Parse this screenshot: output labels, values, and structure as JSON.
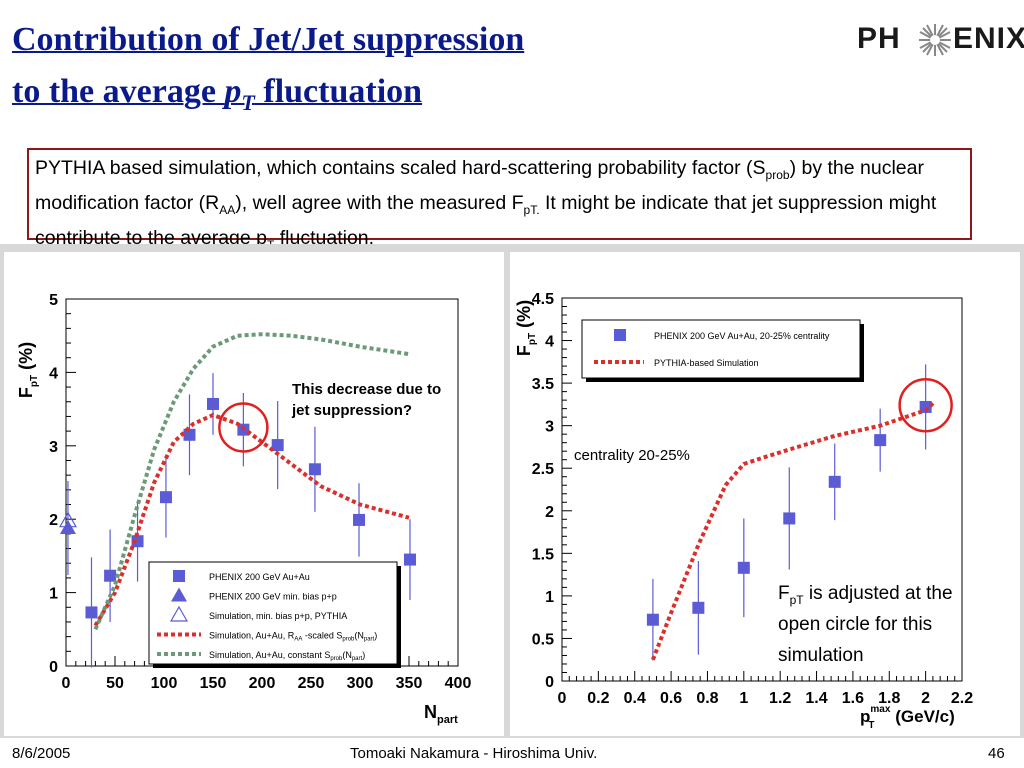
{
  "title": {
    "line1": "Contribution of Jet/Jet suppression",
    "line2_prefix": "to the average ",
    "line2_var": "p",
    "line2_sub": "T",
    "line2_suffix": " fluctuation"
  },
  "logo": {
    "left": "PH",
    "right": "ENIX"
  },
  "note": {
    "t1": "PYTHIA based simulation, which contains scaled hard-scattering probability factor (S",
    "t1_sub": "prob",
    "t2": ") by the nuclear modification factor (R",
    "t2_sub": "AA",
    "t3": "), well agree with the measured F",
    "t3_sub": "pT.",
    "t4": " It might be indicate that jet suppression might contribute to the average p",
    "t4_sub": "T",
    "t5": " fluctuation."
  },
  "colors": {
    "data": "#5b5bd6",
    "sim_red": "#d9302c",
    "sim_green": "#6a9a78",
    "circle": "#e02020"
  },
  "chart_data": [
    {
      "type": "scatter",
      "ylabel": "F",
      "ylabel_sub": "pT",
      "ylabel_unit": "(%)",
      "xlabel": "N",
      "xlabel_sub": "part",
      "xlim": [
        0,
        400
      ],
      "ylim": [
        0,
        5
      ],
      "xticks": [
        "0",
        "50",
        "100",
        "150",
        "200",
        "250",
        "300",
        "350",
        "400"
      ],
      "yticks": [
        "0",
        "1",
        "2",
        "3",
        "4",
        "5"
      ],
      "series": [
        {
          "name": "PHENIX 200 GeV Au+Au",
          "marker": "square",
          "x": [
            26,
            45,
            73,
            102,
            126,
            150,
            181,
            216,
            254,
            299,
            351
          ],
          "y": [
            0.73,
            1.23,
            1.7,
            2.3,
            3.15,
            3.57,
            3.22,
            3.01,
            2.68,
            1.99,
            1.45
          ],
          "err": [
            0.75,
            0.63,
            0.55,
            0.55,
            0.55,
            0.42,
            0.5,
            0.6,
            0.58,
            0.5,
            0.55
          ]
        },
        {
          "name": "PHENIX 200 GeV min. bias p+p",
          "marker": "triangle",
          "x": [
            2
          ],
          "y": [
            1.88
          ],
          "err": [
            0.64
          ]
        },
        {
          "name": "Simulation, min. bias p+p, PYTHIA",
          "marker": "open-triangle",
          "x": [
            2
          ],
          "y": [
            1.98
          ],
          "err": [
            0
          ]
        },
        {
          "name": "Simulation, Au+Au, R_AA -scaled S_prob(N_part)",
          "style": "dotted-red",
          "x": [
            30,
            50,
            70,
            90,
            110,
            130,
            150,
            175,
            200,
            230,
            260,
            300,
            350
          ],
          "y": [
            0.55,
            1.0,
            1.7,
            2.5,
            3.05,
            3.3,
            3.42,
            3.3,
            3.05,
            2.75,
            2.45,
            2.2,
            2.02
          ]
        },
        {
          "name": "Simulation, Au+Au, constant S_prob(N_part)",
          "style": "dotted-green",
          "x": [
            30,
            50,
            70,
            90,
            110,
            130,
            150,
            175,
            200,
            230,
            260,
            300,
            350
          ],
          "y": [
            0.5,
            1.1,
            2.05,
            2.95,
            3.6,
            4.05,
            4.35,
            4.5,
            4.52,
            4.5,
            4.45,
            4.35,
            4.25
          ]
        }
      ],
      "legend": "bottom-right",
      "annotation": "This decrease due to jet suppression?"
    },
    {
      "type": "scatter",
      "ylabel": "F",
      "ylabel_sub": "pT",
      "ylabel_unit": "(%)",
      "xlabel": "p",
      "xlabel_sub": "T",
      "xlabel_sup": "max",
      "xlabel_unit": "(GeV/c)",
      "xlim": [
        0,
        2.2
      ],
      "ylim": [
        0,
        4.5
      ],
      "xticks": [
        "0",
        "0.2",
        "0.4",
        "0.6",
        "0.8",
        "1",
        "1.2",
        "1.4",
        "1.6",
        "1.8",
        "2",
        "2.2"
      ],
      "yticks": [
        "0",
        "0.5",
        "1",
        "1.5",
        "2",
        "2.5",
        "3",
        "3.5",
        "4",
        "4.5"
      ],
      "series": [
        {
          "name": "PHENIX 200 GeV Au+Au, 20-25% centrality",
          "marker": "square",
          "x": [
            0.5,
            0.75,
            1.0,
            1.25,
            1.5,
            1.75,
            2.0
          ],
          "y": [
            0.72,
            0.86,
            1.33,
            1.91,
            2.34,
            2.83,
            3.22
          ],
          "err": [
            0.48,
            0.55,
            0.58,
            0.6,
            0.45,
            0.37,
            0.5
          ]
        },
        {
          "name": "PYTHIA-based Simulation",
          "style": "dotted-red",
          "x": [
            0.5,
            0.6,
            0.75,
            0.9,
            1.0,
            1.1,
            1.25,
            1.5,
            1.75,
            2.0,
            2.05
          ],
          "y": [
            0.25,
            0.8,
            1.6,
            2.3,
            2.55,
            2.62,
            2.72,
            2.88,
            3.0,
            3.18,
            3.28
          ]
        }
      ],
      "legend": "top-right",
      "annotation_centrality": "centrality 20-25%",
      "annotation_adjusted": [
        "F",
        "pT",
        " is adjusted at the",
        "open circle for this",
        "simulation"
      ]
    }
  ],
  "footer": {
    "date": "8/6/2005",
    "author": "Tomoaki Nakamura - Hiroshima Univ.",
    "page": "46"
  }
}
